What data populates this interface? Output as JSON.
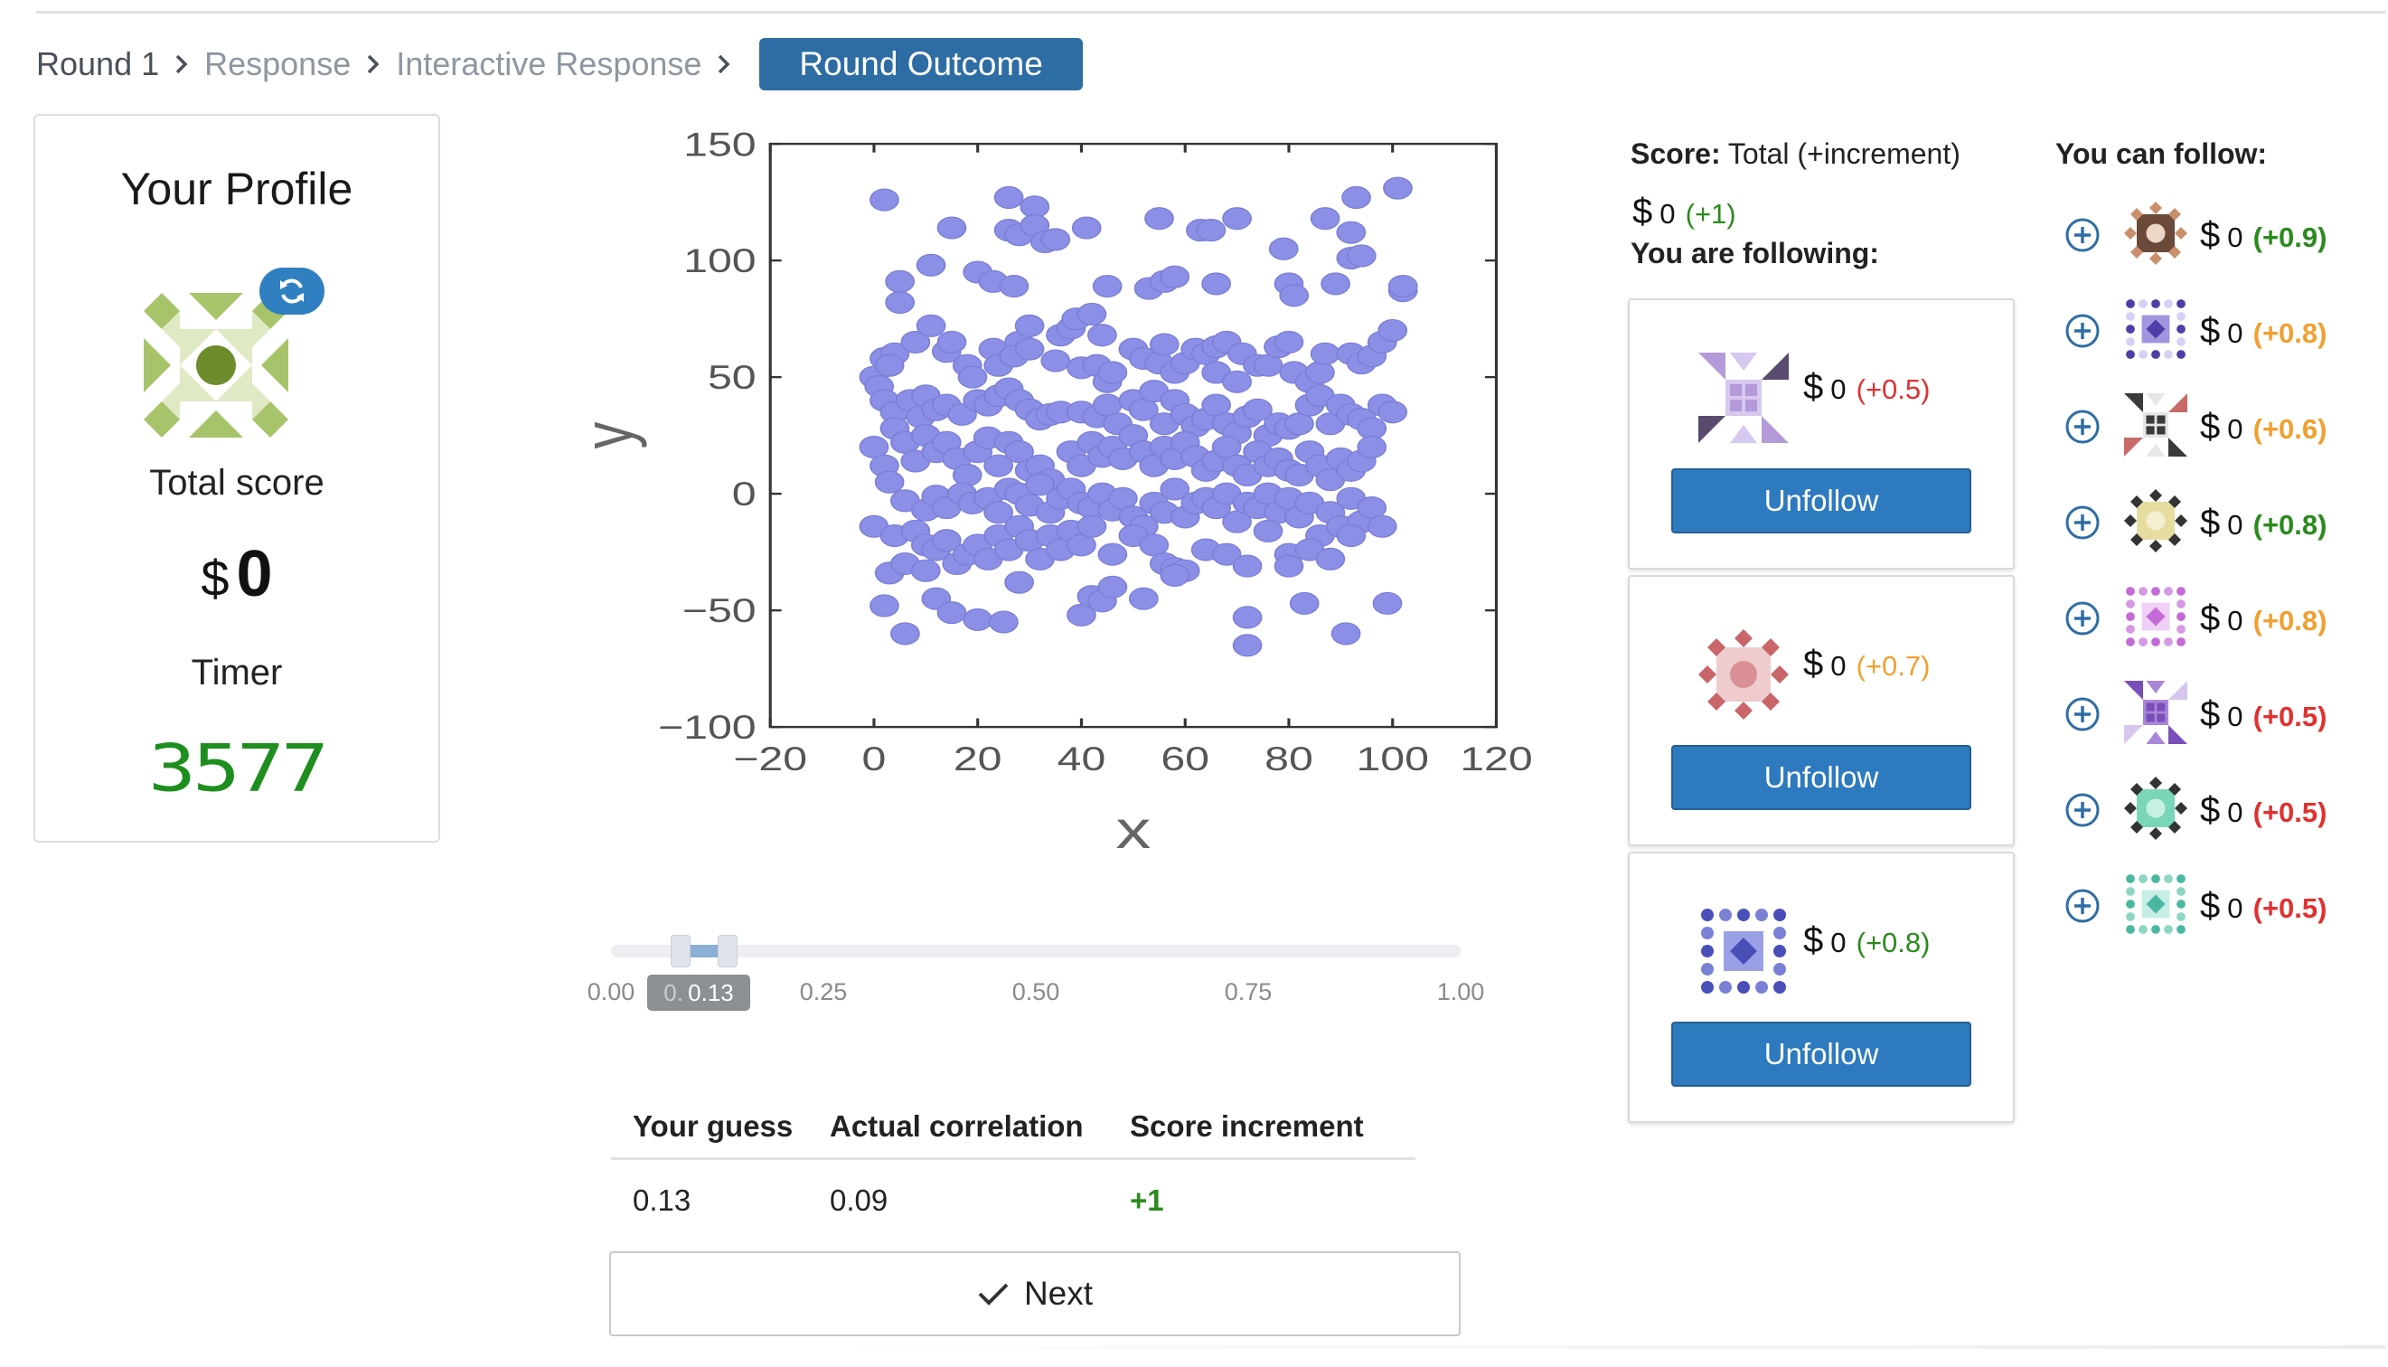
{
  "breadcrumb": {
    "items": [
      "Round 1",
      "Response",
      "Interactive Response"
    ],
    "current": "Round Outcome"
  },
  "profile": {
    "title": "Your Profile",
    "total_score_label": "Total score",
    "currency": "$",
    "total_score": "0",
    "timer_label": "Timer",
    "timer_value": "3577",
    "avatar_colors": [
      "#a7c46a",
      "#dfe9c4",
      "#6e8c2c"
    ]
  },
  "chart_data": {
    "type": "scatter",
    "xlabel": "x",
    "ylabel": "y",
    "xlim": [
      -20,
      120
    ],
    "ylim": [
      -100,
      150
    ],
    "xticks": [
      "−20",
      "0",
      "20",
      "40",
      "60",
      "80",
      "100",
      "120"
    ],
    "yticks": [
      "−100",
      "−50",
      "0",
      "50",
      "100",
      "150"
    ],
    "point_color": "#8c8fe6",
    "points": [
      [
        2,
        126
      ],
      [
        26,
        127
      ],
      [
        31,
        123
      ],
      [
        15,
        114
      ],
      [
        26,
        113
      ],
      [
        28,
        111
      ],
      [
        31,
        115
      ],
      [
        33,
        108
      ],
      [
        35,
        109
      ],
      [
        41,
        114
      ],
      [
        55,
        118
      ],
      [
        63,
        113
      ],
      [
        65,
        113
      ],
      [
        70,
        118
      ],
      [
        79,
        105
      ],
      [
        87,
        118
      ],
      [
        93,
        127
      ],
      [
        92,
        112
      ],
      [
        101,
        131
      ],
      [
        5,
        91
      ],
      [
        5,
        82
      ],
      [
        11,
        98
      ],
      [
        20,
        95
      ],
      [
        23,
        91
      ],
      [
        27,
        89
      ],
      [
        45,
        89
      ],
      [
        53,
        88
      ],
      [
        56,
        91
      ],
      [
        58,
        93
      ],
      [
        66,
        90
      ],
      [
        80,
        90
      ],
      [
        81,
        85
      ],
      [
        89,
        90
      ],
      [
        92,
        101
      ],
      [
        94,
        102
      ],
      [
        102,
        87
      ],
      [
        102,
        89
      ],
      [
        0,
        50
      ],
      [
        2,
        58
      ],
      [
        4,
        60
      ],
      [
        1,
        46
      ],
      [
        3,
        55
      ],
      [
        8,
        65
      ],
      [
        11,
        72
      ],
      [
        14,
        61
      ],
      [
        15,
        65
      ],
      [
        18,
        55
      ],
      [
        19,
        50
      ],
      [
        23,
        62
      ],
      [
        24,
        55
      ],
      [
        28,
        65
      ],
      [
        27,
        59
      ],
      [
        30,
        62
      ],
      [
        30,
        72
      ],
      [
        35,
        57
      ],
      [
        36,
        68
      ],
      [
        38,
        71
      ],
      [
        39,
        75
      ],
      [
        40,
        54
      ],
      [
        42,
        77
      ],
      [
        43,
        55
      ],
      [
        44,
        68
      ],
      [
        45,
        48
      ],
      [
        46,
        52
      ],
      [
        50,
        62
      ],
      [
        52,
        58
      ],
      [
        55,
        56
      ],
      [
        56,
        64
      ],
      [
        58,
        52
      ],
      [
        60,
        56
      ],
      [
        62,
        62
      ],
      [
        64,
        60
      ],
      [
        66,
        52
      ],
      [
        66,
        63
      ],
      [
        68,
        65
      ],
      [
        70,
        48
      ],
      [
        71,
        60
      ],
      [
        74,
        55
      ],
      [
        76,
        55
      ],
      [
        78,
        63
      ],
      [
        80,
        65
      ],
      [
        81,
        52
      ],
      [
        84,
        48
      ],
      [
        86,
        52
      ],
      [
        87,
        60
      ],
      [
        92,
        60
      ],
      [
        94,
        56
      ],
      [
        96,
        59
      ],
      [
        98,
        65
      ],
      [
        100,
        70
      ],
      [
        2,
        40
      ],
      [
        4,
        35
      ],
      [
        7,
        40
      ],
      [
        9,
        33
      ],
      [
        10,
        42
      ],
      [
        12,
        36
      ],
      [
        14,
        38
      ],
      [
        17,
        34
      ],
      [
        20,
        40
      ],
      [
        22,
        38
      ],
      [
        24,
        42
      ],
      [
        26,
        45
      ],
      [
        28,
        40
      ],
      [
        30,
        36
      ],
      [
        32,
        32
      ],
      [
        34,
        34
      ],
      [
        36,
        35
      ],
      [
        40,
        35
      ],
      [
        43,
        33
      ],
      [
        45,
        38
      ],
      [
        47,
        30
      ],
      [
        50,
        40
      ],
      [
        52,
        36
      ],
      [
        54,
        44
      ],
      [
        56,
        30
      ],
      [
        58,
        40
      ],
      [
        60,
        34
      ],
      [
        62,
        29
      ],
      [
        64,
        32
      ],
      [
        66,
        38
      ],
      [
        68,
        30
      ],
      [
        70,
        26
      ],
      [
        72,
        33
      ],
      [
        74,
        36
      ],
      [
        76,
        25
      ],
      [
        78,
        30
      ],
      [
        80,
        28
      ],
      [
        82,
        30
      ],
      [
        84,
        38
      ],
      [
        86,
        42
      ],
      [
        88,
        30
      ],
      [
        90,
        38
      ],
      [
        92,
        34
      ],
      [
        94,
        32
      ],
      [
        96,
        28
      ],
      [
        98,
        38
      ],
      [
        100,
        35
      ],
      [
        0,
        20
      ],
      [
        2,
        12
      ],
      [
        4,
        28
      ],
      [
        6,
        22
      ],
      [
        8,
        14
      ],
      [
        10,
        25
      ],
      [
        12,
        18
      ],
      [
        14,
        22
      ],
      [
        16,
        15
      ],
      [
        18,
        8
      ],
      [
        20,
        18
      ],
      [
        22,
        24
      ],
      [
        24,
        12
      ],
      [
        26,
        22
      ],
      [
        28,
        18
      ],
      [
        30,
        10
      ],
      [
        32,
        12
      ],
      [
        34,
        6
      ],
      [
        38,
        18
      ],
      [
        40,
        12
      ],
      [
        42,
        22
      ],
      [
        44,
        16
      ],
      [
        46,
        20
      ],
      [
        48,
        15
      ],
      [
        50,
        25
      ],
      [
        52,
        18
      ],
      [
        54,
        12
      ],
      [
        56,
        20
      ],
      [
        58,
        15
      ],
      [
        60,
        22
      ],
      [
        62,
        16
      ],
      [
        64,
        10
      ],
      [
        66,
        14
      ],
      [
        68,
        20
      ],
      [
        70,
        12
      ],
      [
        72,
        8
      ],
      [
        74,
        18
      ],
      [
        76,
        12
      ],
      [
        78,
        15
      ],
      [
        80,
        10
      ],
      [
        82,
        8
      ],
      [
        84,
        18
      ],
      [
        86,
        12
      ],
      [
        88,
        6
      ],
      [
        90,
        15
      ],
      [
        92,
        10
      ],
      [
        94,
        14
      ],
      [
        96,
        20
      ],
      [
        3,
        5
      ],
      [
        6,
        -3
      ],
      [
        10,
        -7
      ],
      [
        12,
        -1
      ],
      [
        14,
        -6
      ],
      [
        17,
        0
      ],
      [
        19,
        -4
      ],
      [
        22,
        -2
      ],
      [
        24,
        -8
      ],
      [
        26,
        2
      ],
      [
        28,
        0
      ],
      [
        30,
        -5
      ],
      [
        32,
        4
      ],
      [
        34,
        -8
      ],
      [
        36,
        -2
      ],
      [
        38,
        2
      ],
      [
        40,
        -4
      ],
      [
        42,
        -6
      ],
      [
        44,
        0
      ],
      [
        46,
        -7
      ],
      [
        48,
        -2
      ],
      [
        50,
        -10
      ],
      [
        52,
        -14
      ],
      [
        54,
        -4
      ],
      [
        56,
        -8
      ],
      [
        58,
        2
      ],
      [
        60,
        -10
      ],
      [
        62,
        -4
      ],
      [
        64,
        -2
      ],
      [
        66,
        -6
      ],
      [
        68,
        0
      ],
      [
        70,
        -12
      ],
      [
        72,
        -4
      ],
      [
        74,
        -6
      ],
      [
        76,
        0
      ],
      [
        78,
        -8
      ],
      [
        80,
        -2
      ],
      [
        82,
        -10
      ],
      [
        84,
        -4
      ],
      [
        86,
        -18
      ],
      [
        88,
        -8
      ],
      [
        90,
        -14
      ],
      [
        92,
        -2
      ],
      [
        94,
        -12
      ],
      [
        96,
        -6
      ],
      [
        0,
        -14
      ],
      [
        4,
        -18
      ],
      [
        8,
        -16
      ],
      [
        10,
        -22
      ],
      [
        12,
        -24
      ],
      [
        14,
        -20
      ],
      [
        16,
        -30
      ],
      [
        18,
        -26
      ],
      [
        20,
        -22
      ],
      [
        22,
        -28
      ],
      [
        24,
        -18
      ],
      [
        26,
        -24
      ],
      [
        28,
        -14
      ],
      [
        30,
        -20
      ],
      [
        32,
        -28
      ],
      [
        34,
        -18
      ],
      [
        36,
        -24
      ],
      [
        38,
        -16
      ],
      [
        40,
        -22
      ],
      [
        42,
        -14
      ],
      [
        46,
        -26
      ],
      [
        50,
        -18
      ],
      [
        54,
        -22
      ],
      [
        56,
        -30
      ],
      [
        58,
        -32
      ],
      [
        60,
        -33
      ],
      [
        64,
        -24
      ],
      [
        68,
        -26
      ],
      [
        72,
        -31
      ],
      [
        76,
        -16
      ],
      [
        80,
        -26
      ],
      [
        84,
        -24
      ],
      [
        88,
        -28
      ],
      [
        92,
        -18
      ],
      [
        98,
        -14
      ],
      [
        3,
        -34
      ],
      [
        6,
        -30
      ],
      [
        10,
        -33
      ],
      [
        2,
        -48
      ],
      [
        6,
        -60
      ],
      [
        12,
        -45
      ],
      [
        15,
        -51
      ],
      [
        20,
        -54
      ],
      [
        25,
        -55
      ],
      [
        28,
        -38
      ],
      [
        40,
        -52
      ],
      [
        42,
        -44
      ],
      [
        44,
        -46
      ],
      [
        46,
        -40
      ],
      [
        52,
        -45
      ],
      [
        58,
        -35
      ],
      [
        72,
        -53
      ],
      [
        72,
        -65
      ],
      [
        83,
        -47
      ],
      [
        91,
        -60
      ],
      [
        99,
        -47
      ],
      [
        80,
        -31
      ]
    ]
  },
  "slider": {
    "ticks": [
      "0.00",
      "0.25",
      "0.50",
      "0.75",
      "1.00"
    ],
    "value": 0.13,
    "bubble_text": "0.13",
    "bubble_hidden": "0. "
  },
  "results": {
    "headers": [
      "Your guess",
      "Actual correlation",
      "Score increment"
    ],
    "guess": "0.13",
    "actual": "0.09",
    "increment": "+1"
  },
  "next_label": "Next",
  "score": {
    "label_bold": "Score:",
    "label_rest": " Total (+increment)",
    "currency": "$",
    "value": "0",
    "increment": "(+1)",
    "following_label": "You are following:"
  },
  "following": [
    {
      "currency": "$",
      "value": "0",
      "increment": "(+0.5)",
      "tone": "neg",
      "button": "Unfollow",
      "colors": [
        "#b49ad9",
        "#5a4a6e",
        "#d6c8ee"
      ]
    },
    {
      "currency": "$",
      "value": "0",
      "increment": "(+0.7)",
      "tone": "mid",
      "button": "Unfollow",
      "colors": [
        "#c9666a",
        "#eeccce",
        "#d98f93"
      ]
    },
    {
      "currency": "$",
      "value": "0",
      "increment": "(+0.8)",
      "tone": "pos",
      "button": "Unfollow",
      "colors": [
        "#4a4fb8",
        "#9aa0e6",
        "#7a80d4"
      ]
    }
  ],
  "can_follow": {
    "label": "You can follow:",
    "items": [
      {
        "currency": "$",
        "value": "0",
        "increment": "(+0.9)",
        "tone": "pos",
        "colors": [
          "#c98f6c",
          "#6b4a3a",
          "#ecd6c6"
        ]
      },
      {
        "currency": "$",
        "value": "0",
        "increment": "(+0.8)",
        "tone": "mid",
        "colors": [
          "#4d3ea8",
          "#a394e0",
          "#d8d0f4"
        ]
      },
      {
        "currency": "$",
        "value": "0",
        "increment": "(+0.6)",
        "tone": "mid",
        "colors": [
          "#3a3a3a",
          "#c96a6a",
          "#e6e6e6"
        ]
      },
      {
        "currency": "$",
        "value": "0",
        "increment": "(+0.8)",
        "tone": "pos",
        "colors": [
          "#333333",
          "#e6dca0",
          "#f4efd0"
        ]
      },
      {
        "currency": "$",
        "value": "0",
        "increment": "(+0.8)",
        "tone": "mid",
        "colors": [
          "#c46ad6",
          "#f0d0f6",
          "#d69ae4"
        ]
      },
      {
        "currency": "$",
        "value": "0",
        "increment": "(+0.5)",
        "tone": "neg",
        "colors": [
          "#7a4eb8",
          "#d6c6ee",
          "#a886d8"
        ]
      },
      {
        "currency": "$",
        "value": "0",
        "increment": "(+0.5)",
        "tone": "neg",
        "colors": [
          "#333333",
          "#7ad6b8",
          "#c8f0e2"
        ]
      },
      {
        "currency": "$",
        "value": "0",
        "increment": "(+0.5)",
        "tone": "neg",
        "colors": [
          "#4ab8a0",
          "#c6eee4",
          "#8ed6c4"
        ]
      }
    ]
  }
}
